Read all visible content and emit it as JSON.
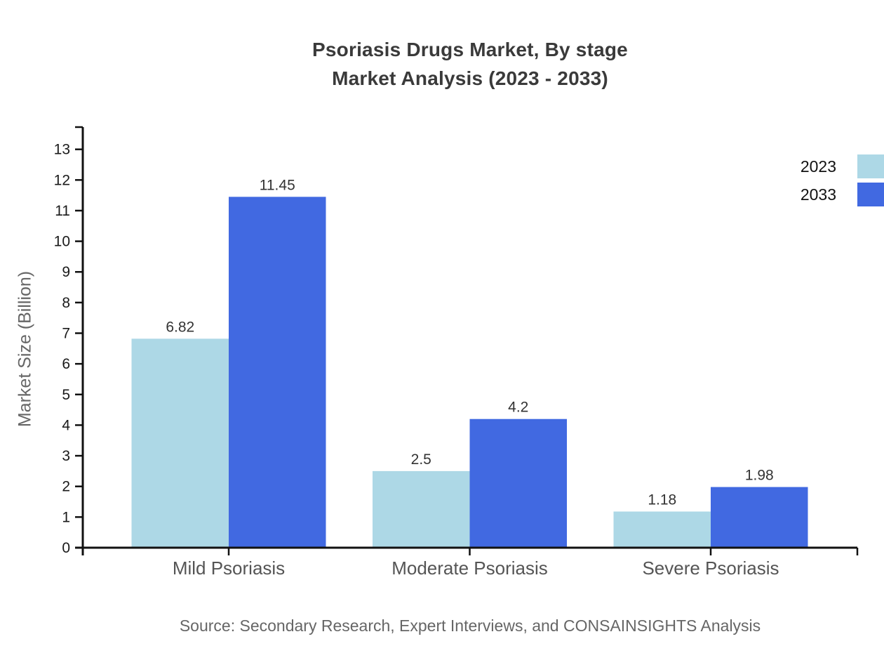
{
  "title": {
    "line1": "Psoriasis Drugs Market, By stage",
    "line2": "Market Analysis (2023 - 2033)"
  },
  "source": "Source: Secondary Research, Expert Interviews, and CONSAINSIGHTS Analysis",
  "colors": {
    "series_2023": "#add8e6",
    "series_2033": "#4169e1",
    "axis": "#111111",
    "title_text": "#3a3a3a",
    "tick_label": "#1a1a1a",
    "value_label": "#333333",
    "category_label": "#555555",
    "muted_text": "#666666"
  },
  "chart_data": {
    "type": "bar",
    "title": "Psoriasis Drugs Market, By stage — Market Analysis (2023 - 2033)",
    "categories": [
      "Mild Psoriasis",
      "Moderate Psoriasis",
      "Severe Psoriasis"
    ],
    "series": [
      {
        "name": "2023",
        "color": "#add8e6",
        "values": [
          6.82,
          2.5,
          1.18
        ],
        "labels": [
          "6.82",
          "2.5",
          "1.18"
        ]
      },
      {
        "name": "2033",
        "color": "#4169e1",
        "values": [
          11.45,
          4.2,
          1.98
        ],
        "labels": [
          "11.45",
          "4.2",
          "1.98"
        ]
      }
    ],
    "xlabel": "",
    "ylabel": "Market Size (Billion)",
    "ylim": [
      0,
      13.75
    ],
    "yticks": [
      0,
      1,
      2,
      3,
      4,
      5,
      6,
      7,
      8,
      9,
      10,
      11,
      12,
      13
    ],
    "grid": false,
    "legend_position": "top-right",
    "legend_entries": [
      "2023",
      "2033"
    ]
  }
}
